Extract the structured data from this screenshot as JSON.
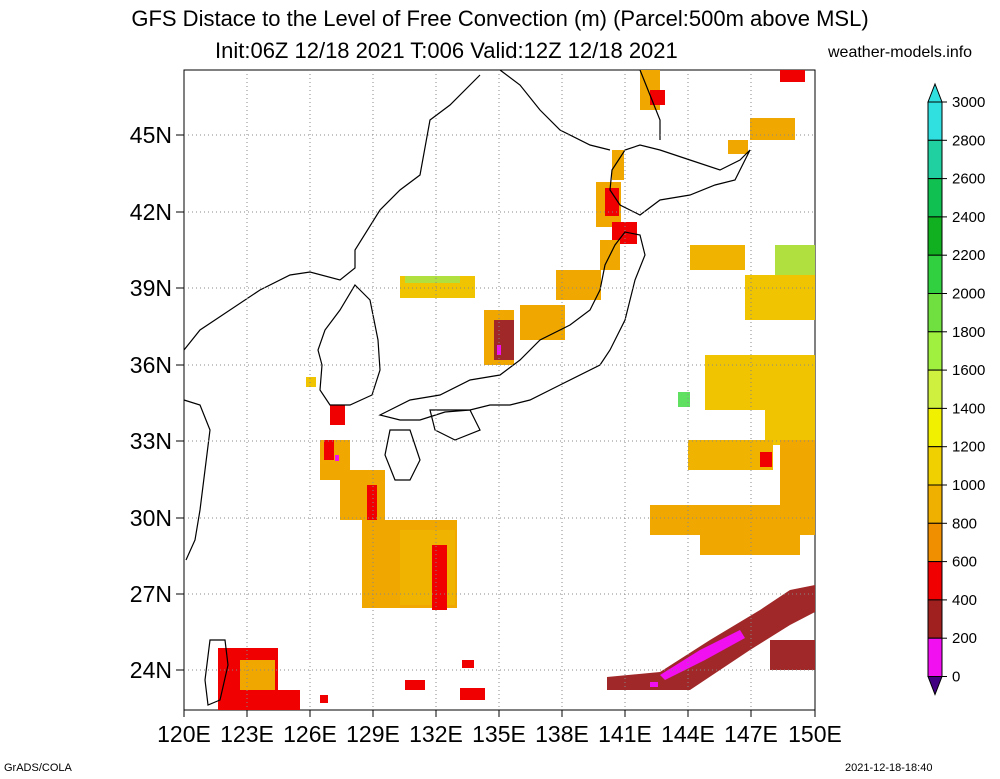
{
  "title": {
    "line1": "GFS Distace to the Level of Free Convection (m) (Parcel:500m above MSL)",
    "line2": "Init:06Z 12/18 2021 T:006 Valid:12Z 12/18 2021",
    "credit": "weather-models.info"
  },
  "footer": {
    "left": "GrADS/COLA",
    "right": "2021-12-18-18:40"
  },
  "map": {
    "lat_labels": [
      "45N",
      "42N",
      "39N",
      "36N",
      "33N",
      "30N",
      "27N",
      "24N"
    ],
    "lon_labels": [
      "120E",
      "123E",
      "126E",
      "129E",
      "132E",
      "135E",
      "138E",
      "141E",
      "144E",
      "147E",
      "150E"
    ],
    "grid": "dotted"
  },
  "colorbar": {
    "labels": [
      "3000",
      "2800",
      "2600",
      "2400",
      "2200",
      "2000",
      "1800",
      "1600",
      "1400",
      "1200",
      "1000",
      "800",
      "600",
      "400",
      "200",
      "0"
    ],
    "colors": [
      "#30e0e0",
      "#20d0a0",
      "#10c050",
      "#10b020",
      "#30d040",
      "#70e040",
      "#a0f040",
      "#d0f040",
      "#f0f000",
      "#f0d000",
      "#f0b000",
      "#f09000",
      "#f00000",
      "#a02020",
      "#f010f0",
      "#400080"
    ]
  },
  "fields": {
    "colors": {
      "yellow": "#f0c400",
      "orange": "#f0a800",
      "dark_orange": "#e89000",
      "red": "#f00000",
      "brown": "#a02828",
      "magenta": "#f010f0",
      "lime": "#b0e040",
      "green": "#60e060"
    }
  }
}
